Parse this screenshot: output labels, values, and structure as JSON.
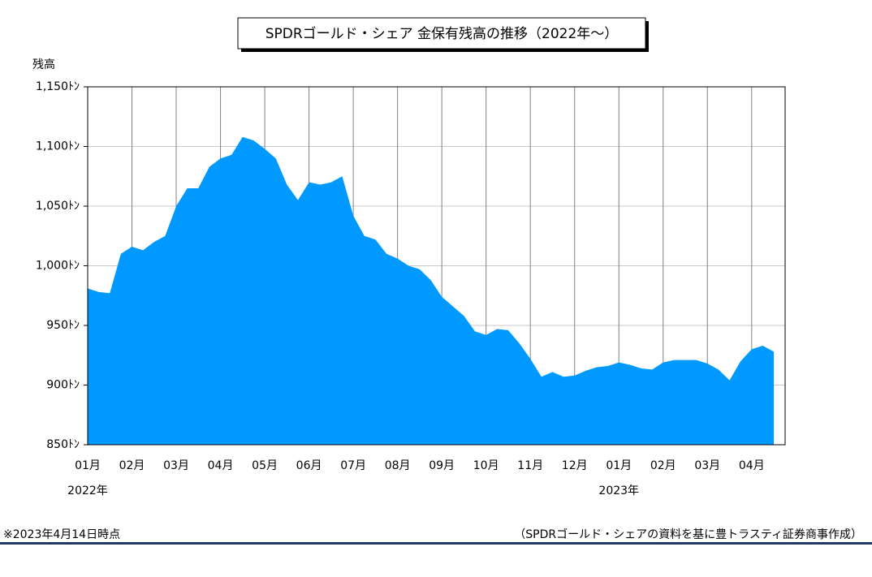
{
  "chart_data": {
    "type": "area",
    "title": "SPDRゴールド・シェア 金保有残高の推移（2022年～）",
    "y_label": "残高",
    "categories": [
      "01月",
      null,
      null,
      null,
      "02月",
      null,
      null,
      null,
      "03月",
      null,
      null,
      null,
      "04月",
      null,
      null,
      null,
      "05月",
      null,
      null,
      null,
      "06月",
      null,
      null,
      null,
      "07月",
      null,
      null,
      null,
      "08月",
      null,
      null,
      null,
      "09月",
      null,
      null,
      null,
      "10月",
      null,
      null,
      null,
      "11月",
      null,
      null,
      null,
      "12月",
      null,
      null,
      null,
      "01月",
      null,
      null,
      null,
      "02月",
      null,
      null,
      null,
      "03月",
      null,
      null,
      null,
      "04月",
      null,
      null
    ],
    "x_group_labels": [
      "2022年",
      null,
      null,
      null,
      null,
      null,
      null,
      null,
      null,
      null,
      null,
      null,
      null,
      null,
      null,
      null,
      null,
      null,
      null,
      null,
      null,
      null,
      null,
      null,
      null,
      null,
      null,
      null,
      null,
      null,
      null,
      null,
      null,
      null,
      null,
      null,
      null,
      null,
      null,
      null,
      null,
      null,
      null,
      null,
      null,
      null,
      null,
      null,
      "2023年",
      null,
      null,
      null,
      null,
      null,
      null,
      null,
      null,
      null,
      null,
      null,
      null,
      null,
      null
    ],
    "values": [
      981,
      978,
      977,
      1010,
      1016,
      1013,
      1020,
      1025,
      1050,
      1065,
      1065,
      1083,
      1090,
      1093,
      1108,
      1105,
      1098,
      1090,
      1068,
      1055,
      1070,
      1068,
      1070,
      1075,
      1042,
      1025,
      1022,
      1010,
      1006,
      1000,
      997,
      988,
      974,
      966,
      958,
      945,
      942,
      947,
      946,
      935,
      922,
      907,
      911,
      907,
      908,
      912,
      915,
      916,
      919,
      917,
      914,
      913,
      919,
      921,
      921,
      921,
      918,
      913,
      904,
      920,
      930,
      933,
      928
    ],
    "color": "#0099ff",
    "ylim": [
      850,
      1150
    ],
    "yticks": [
      {
        "value": 850,
        "label": "850ﾄﾝ"
      },
      {
        "value": 900,
        "label": "900ﾄﾝ"
      },
      {
        "value": 950,
        "label": "950ﾄﾝ"
      },
      {
        "value": 1000,
        "label": "1,000ﾄﾝ"
      },
      {
        "value": 1050,
        "label": "1,050ﾄﾝ"
      },
      {
        "value": 1100,
        "label": "1,100ﾄﾝ"
      },
      {
        "value": 1150,
        "label": "1,150ﾄﾝ"
      }
    ],
    "grid": true,
    "note_left": "※2023年4月14日時点",
    "note_right": "（SPDRゴールド・シェアの資料を基に豊トラスティ証券商事作成）"
  }
}
